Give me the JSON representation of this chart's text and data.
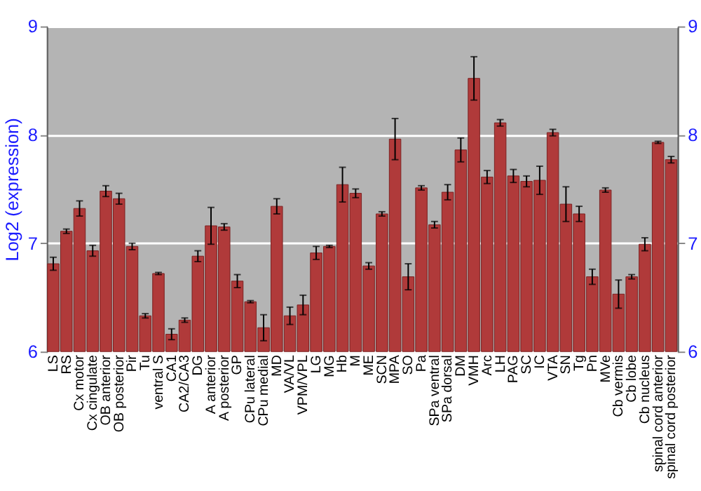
{
  "chart_data": {
    "type": "bar",
    "ylabel": "Log2 (expression)",
    "categories": [
      "LS",
      "RS",
      "Cx motor",
      "Cx cingulate",
      "OB anterior",
      "OB posterior",
      "Pir",
      "Tu",
      "ventral S",
      "CA1",
      "CA2/CA3",
      "DG",
      "A anterior",
      "A posterior",
      "GP",
      "CPu lateral",
      "CPu medial",
      "MD",
      "VA/VL",
      "VPM/VPL",
      "LG",
      "MG",
      "Hb",
      "M",
      "ME",
      "SCN",
      "MPA",
      "SO",
      "Pa",
      "SPa ventral",
      "SPa dorsal",
      "DM",
      "VMH",
      "Arc",
      "LH",
      "PAG",
      "SC",
      "IC",
      "VTA",
      "SN",
      "Tg",
      "Pn",
      "MVe",
      "Cb vermis",
      "Cb lobe",
      "Cb nucleus",
      "spinal cord anterior",
      "spinal cord posterior"
    ],
    "values": [
      6.81,
      7.11,
      7.32,
      6.93,
      7.48,
      7.41,
      6.97,
      6.33,
      6.72,
      6.16,
      6.29,
      6.88,
      7.16,
      7.15,
      6.65,
      6.46,
      6.22,
      7.34,
      6.33,
      6.43,
      6.91,
      6.97,
      7.54,
      7.46,
      6.79,
      7.27,
      7.96,
      6.69,
      7.51,
      7.17,
      7.47,
      7.86,
      8.52,
      7.61,
      8.11,
      7.62,
      7.57,
      7.58,
      8.02,
      7.36,
      7.27,
      6.69,
      7.49,
      6.53,
      6.69,
      6.99,
      7.93,
      7.77
    ],
    "errors": [
      0.06,
      0.02,
      0.07,
      0.05,
      0.05,
      0.05,
      0.03,
      0.02,
      0.01,
      0.05,
      0.02,
      0.05,
      0.17,
      0.03,
      0.06,
      0.01,
      0.12,
      0.07,
      0.08,
      0.09,
      0.06,
      0.01,
      0.16,
      0.04,
      0.03,
      0.02,
      0.19,
      0.12,
      0.02,
      0.03,
      0.07,
      0.11,
      0.2,
      0.06,
      0.03,
      0.06,
      0.05,
      0.13,
      0.03,
      0.16,
      0.07,
      0.07,
      0.02,
      0.13,
      0.02,
      0.06,
      0.01,
      0.03
    ],
    "color": "#b03a3a",
    "ylim": [
      6,
      9
    ],
    "yticks": [
      6,
      7,
      8,
      9
    ],
    "y2lim": [
      6,
      9
    ],
    "y2ticks": [
      6,
      7,
      8,
      9
    ],
    "grid": "y"
  }
}
